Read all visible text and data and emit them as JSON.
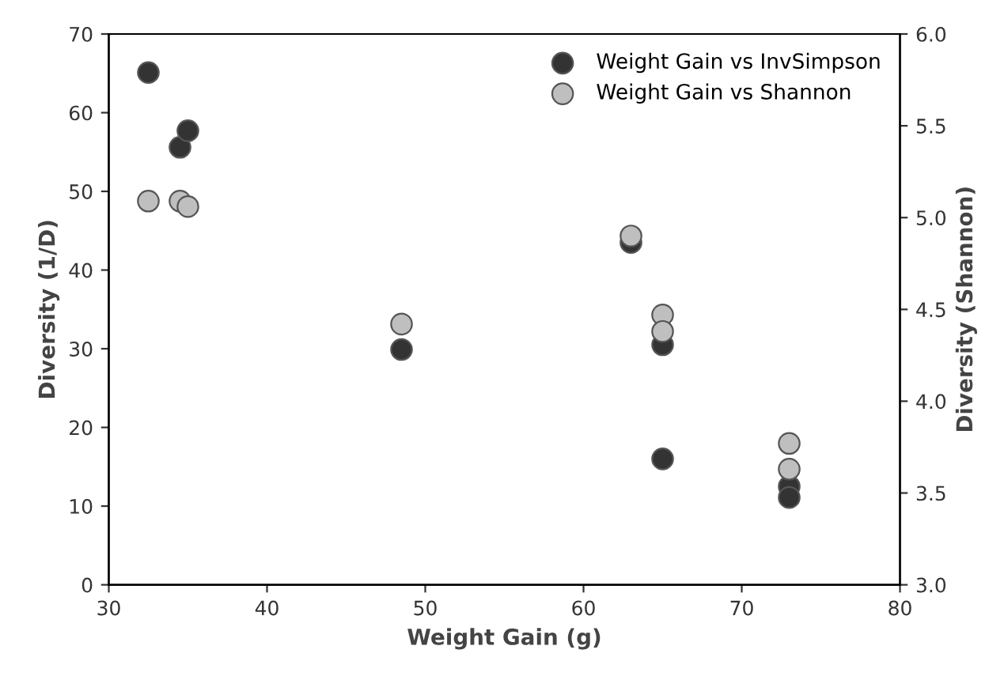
{
  "chart_data": {
    "type": "scatter",
    "xlabel": "Weight Gain (g)",
    "ylabel": "Diversity (1/D)",
    "y2label": "Diversity (Shannon)",
    "xlim": [
      30,
      80
    ],
    "xticks": [
      30,
      40,
      50,
      60,
      70,
      80
    ],
    "ylim": [
      0,
      70
    ],
    "yticks": [
      0,
      10,
      20,
      30,
      40,
      50,
      60,
      70
    ],
    "y2lim": [
      3.0,
      6.0
    ],
    "y2ticks": [
      {
        "value": 3.0,
        "label": "3.0"
      },
      {
        "value": 3.5,
        "label": "3.5"
      },
      {
        "value": 4.0,
        "label": "4.0"
      },
      {
        "value": 4.5,
        "label": "4.5"
      },
      {
        "value": 5.0,
        "label": "5.0"
      },
      {
        "value": 5.5,
        "label": "5.5"
      },
      {
        "value": 6.0,
        "label": "6.0"
      }
    ],
    "marker": "circle",
    "legend": "top right",
    "grid": false,
    "series": [
      {
        "name": "Weight Gain vs InvSimpson",
        "color": "#333333",
        "x": [
          32.5,
          34.5,
          35,
          48.5,
          63,
          65,
          65,
          73,
          73
        ],
        "values": [
          65.1,
          55.6,
          57.7,
          29.9,
          43.5,
          30.5,
          16.0,
          12.5,
          11.1
        ]
      },
      {
        "name": "Weight Gain vs Shannon",
        "color": "#bfbfbf",
        "axis": "y2",
        "x": [
          32.5,
          34.5,
          35,
          48.5,
          63,
          65,
          65,
          73,
          73
        ],
        "values": [
          5.09,
          5.09,
          5.06,
          4.42,
          4.9,
          4.47,
          4.38,
          3.77,
          3.63
        ]
      }
    ]
  }
}
